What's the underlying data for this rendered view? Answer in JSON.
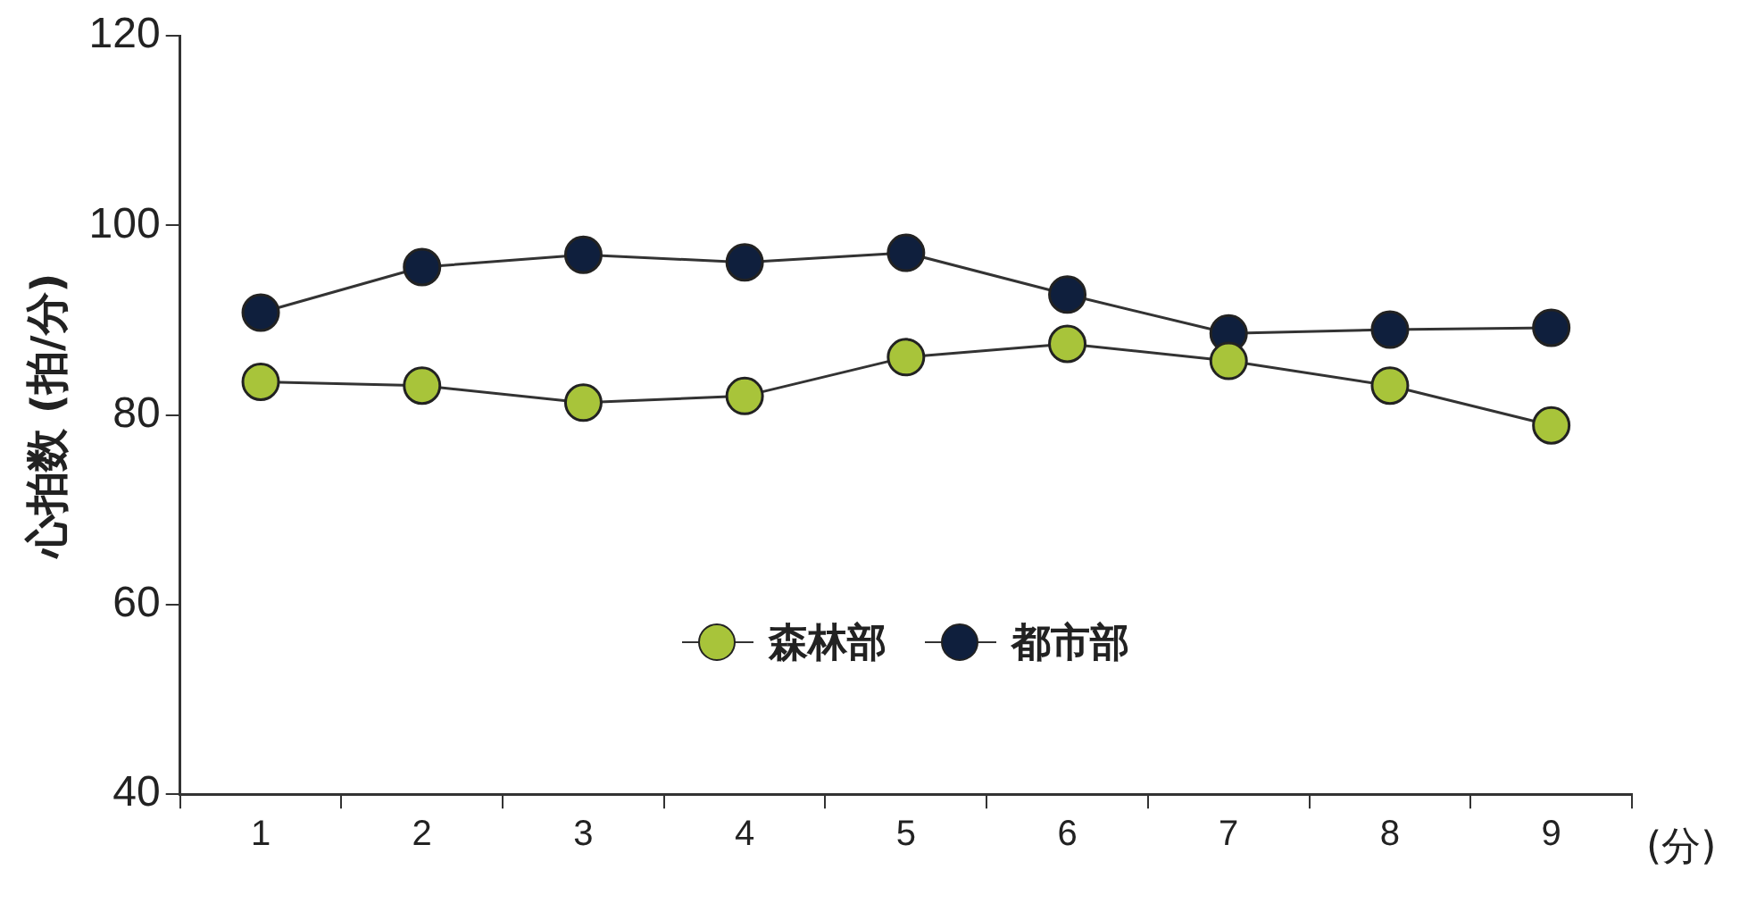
{
  "chart_data": {
    "type": "line",
    "ylabel": "心拍数 (拍/分)",
    "xlabel": "(分)",
    "categories": [
      "1",
      "2",
      "3",
      "4",
      "5",
      "6",
      "7",
      "8",
      "9"
    ],
    "series": [
      {
        "name": "森林部",
        "color": "#a8c43a",
        "values": [
          83.5,
          83.1,
          81.3,
          82.0,
          86.1,
          87.5,
          85.7,
          83.1,
          78.9
        ]
      },
      {
        "name": "都市部",
        "color": "#0f1f3d",
        "values": [
          90.8,
          95.6,
          96.9,
          96.1,
          97.1,
          92.7,
          88.6,
          89.0,
          89.2
        ]
      }
    ],
    "ylim": [
      40,
      120
    ],
    "yticks": [
      40,
      60,
      80,
      100,
      120
    ],
    "grid": false,
    "legend": "center",
    "marker": "circle",
    "line_style": "solid"
  }
}
